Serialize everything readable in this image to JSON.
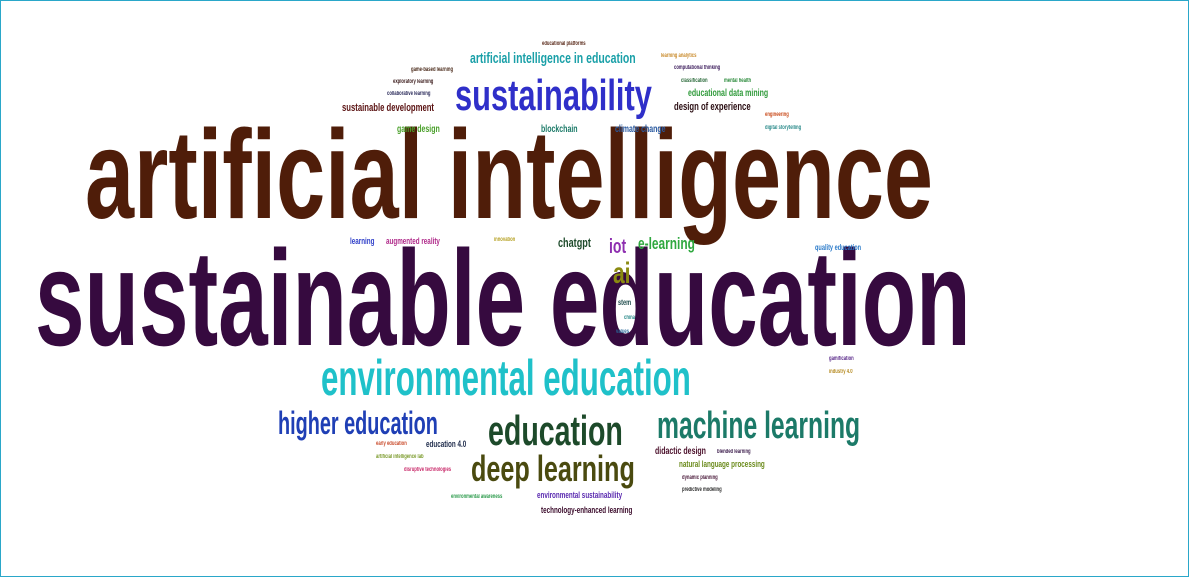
{
  "words": [
    {
      "text": "artificial intelligence",
      "color": "#4f1d09"
    },
    {
      "text": "sustainable education",
      "color": "#360a3f"
    },
    {
      "text": "sustainability",
      "color": "#2f2fc9"
    },
    {
      "text": "environmental education",
      "color": "#1fc1c9"
    },
    {
      "text": "education",
      "color": "#1d4a2a"
    },
    {
      "text": "machine learning",
      "color": "#1c7a68"
    },
    {
      "text": "deep learning",
      "color": "#4a4a0f"
    },
    {
      "text": "higher education",
      "color": "#1f3fb5"
    },
    {
      "text": "ai",
      "color": "#8a8a10"
    },
    {
      "text": "iot",
      "color": "#8e2fb0"
    },
    {
      "text": "e-learning",
      "color": "#2fa83f"
    },
    {
      "text": "chatgpt",
      "color": "#1d4a2a"
    },
    {
      "text": "artificial intelligence in education",
      "color": "#1aa0a8"
    },
    {
      "text": "design of experience",
      "color": "#2a0d12"
    },
    {
      "text": "sustainable development",
      "color": "#5a1212"
    },
    {
      "text": "educational data mining",
      "color": "#2f9a3a"
    },
    {
      "text": "game design",
      "color": "#4aa02a"
    },
    {
      "text": "blockchain",
      "color": "#1c7a68"
    },
    {
      "text": "climate change",
      "color": "#2a5aa0"
    },
    {
      "text": "learning",
      "color": "#2f3fc9"
    },
    {
      "text": "augmented reality",
      "color": "#b02a8a"
    },
    {
      "text": "innovation",
      "color": "#b5a020"
    },
    {
      "text": "quality education",
      "color": "#2a7ac9"
    },
    {
      "text": "stem",
      "color": "#1d4a4a"
    },
    {
      "text": "china",
      "color": "#2a8a8a"
    },
    {
      "text": "values",
      "color": "#2a6a9a"
    },
    {
      "text": "gamification",
      "color": "#5a2a8a"
    },
    {
      "text": "industry 4.0",
      "color": "#b58a20"
    },
    {
      "text": "education 4.0",
      "color": "#1d2a4a"
    },
    {
      "text": "early education",
      "color": "#c94a2a"
    },
    {
      "text": "artificial intelligence lab",
      "color": "#7a9a2a"
    },
    {
      "text": "disruptive technologies",
      "color": "#c92a6a"
    },
    {
      "text": "didactic design",
      "color": "#4a0f2a"
    },
    {
      "text": "blended learning",
      "color": "#3a1a4a"
    },
    {
      "text": "natural language processing",
      "color": "#6a8a1a"
    },
    {
      "text": "dynamic planning",
      "color": "#4a1a3a"
    },
    {
      "text": "predictive modeling",
      "color": "#2a2a2a"
    },
    {
      "text": "environmental awareness",
      "color": "#2a9a4a"
    },
    {
      "text": "environmental sustainability",
      "color": "#5a2ab0"
    },
    {
      "text": "technology-enhanced learning",
      "color": "#3a0a2a"
    },
    {
      "text": "educational platforms",
      "color": "#5a2a1a"
    },
    {
      "text": "learning analytics",
      "color": "#c98a2a"
    },
    {
      "text": "computational thinking",
      "color": "#3a1a5a"
    },
    {
      "text": "game-based learning",
      "color": "#4a2a1a"
    },
    {
      "text": "exploratory learning",
      "color": "#3a1a1a"
    },
    {
      "text": "collaborative learning",
      "color": "#2a2a5a"
    },
    {
      "text": "classification",
      "color": "#2a6a3a"
    },
    {
      "text": "mental health",
      "color": "#2a8a3a"
    },
    {
      "text": "engineering",
      "color": "#c94a1a"
    },
    {
      "text": "digital storytelling",
      "color": "#2a8a8a"
    }
  ]
}
